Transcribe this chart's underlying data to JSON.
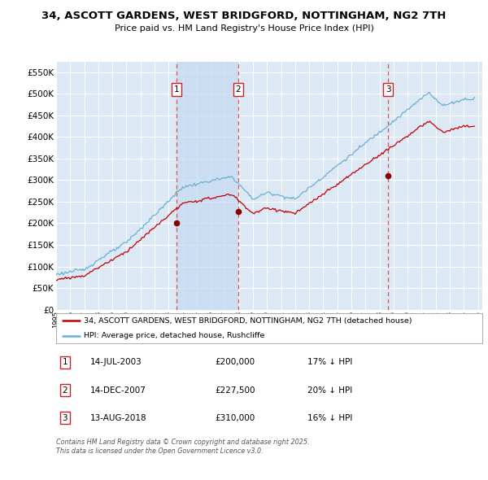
{
  "title": "34, ASCOTT GARDENS, WEST BRIDGFORD, NOTTINGHAM, NG2 7TH",
  "subtitle": "Price paid vs. HM Land Registry's House Price Index (HPI)",
  "ylim": [
    0,
    575000
  ],
  "ytick_vals": [
    0,
    50000,
    100000,
    150000,
    200000,
    250000,
    300000,
    350000,
    400000,
    450000,
    500000,
    550000
  ],
  "background_color": "#ffffff",
  "plot_bg_color": "#dce9f5",
  "grid_color": "#ffffff",
  "hpi_color": "#6baed6",
  "price_color": "#c00000",
  "sale_marker_color": "#8b0000",
  "dashed_line_color": "#e05050",
  "shade_color": "#c5d8ee",
  "legend_label_price": "34, ASCOTT GARDENS, WEST BRIDGFORD, NOTTINGHAM, NG2 7TH (detached house)",
  "legend_label_hpi": "HPI: Average price, detached house, Rushcliffe",
  "sales": [
    {
      "num": 1,
      "date": "14-JUL-2003",
      "year": 2003.54,
      "price": 200000,
      "pct": "17%",
      "dir": "↓"
    },
    {
      "num": 2,
      "date": "14-DEC-2007",
      "year": 2007.95,
      "price": 227500,
      "pct": "20%",
      "dir": "↓"
    },
    {
      "num": 3,
      "date": "13-AUG-2018",
      "year": 2018.62,
      "price": 310000,
      "pct": "16%",
      "dir": "↓"
    }
  ],
  "footer": "Contains HM Land Registry data © Crown copyright and database right 2025.\nThis data is licensed under the Open Government Licence v3.0."
}
